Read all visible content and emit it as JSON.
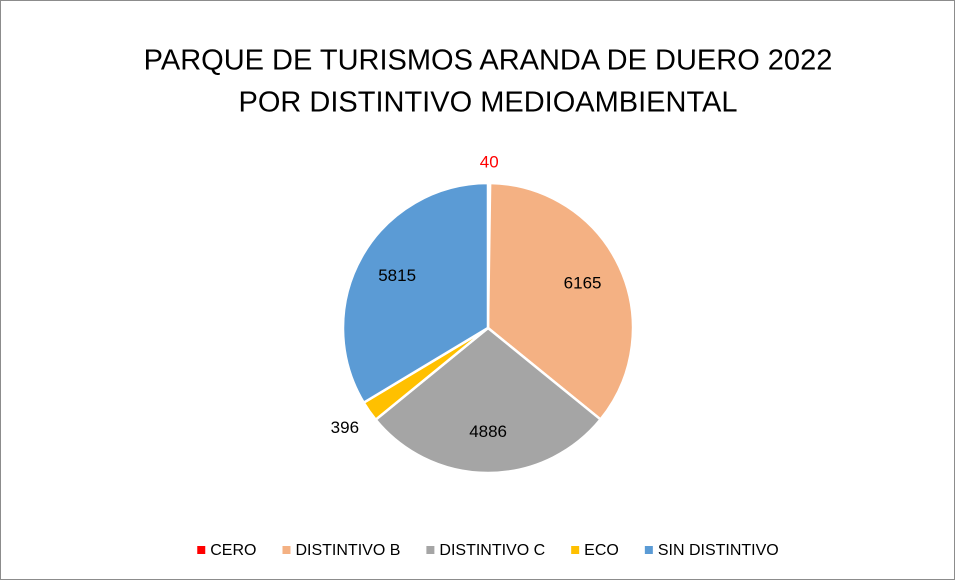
{
  "chart_data": {
    "type": "pie",
    "title": [
      "PARQUE DE TURISMOS ARANDA DE DUERO 2022",
      "POR DISTINTIVO MEDIOAMBIENTAL"
    ],
    "categories": [
      "CERO",
      "DISTINTIVO B",
      "DISTINTIVO C",
      "ECO",
      "SIN DISTINTIVO"
    ],
    "values": [
      40,
      6165,
      4886,
      396,
      5815
    ],
    "colors": [
      "#ff0000",
      "#f4b183",
      "#a5a5a5",
      "#ffc000",
      "#5b9bd5"
    ],
    "label_colors": [
      "#ff0000",
      "#000000",
      "#000000",
      "#000000",
      "#000000"
    ],
    "legend": "bottom"
  }
}
